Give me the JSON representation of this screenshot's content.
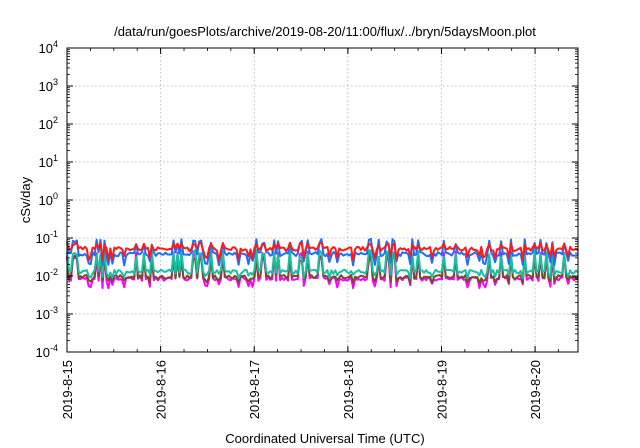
{
  "chart_data": {
    "type": "line",
    "title": "/data/run/goesPlots/archive/2019-08-20/11:00/flux/../bryn/5daysMoon.plot",
    "xlabel": "Coordinated Universal Time (UTC)",
    "ylabel": "cSv/day",
    "yscale": "log",
    "ylim": [
      0.0001,
      10000
    ],
    "xlim": [
      "2019-08-15 00:00",
      "2019-08-20 11:00"
    ],
    "grid": true,
    "legend": "none",
    "x_ticks": [
      "2019-8-15",
      "2019-8-16",
      "2019-8-17",
      "2019-8-18",
      "2019-8-19",
      "2019-8-20"
    ],
    "y_ticks": [
      {
        "value": 0.0001,
        "base": "10",
        "exp": "-4"
      },
      {
        "value": 0.001,
        "base": "10",
        "exp": "-3"
      },
      {
        "value": 0.01,
        "base": "10",
        "exp": "-2"
      },
      {
        "value": 0.1,
        "base": "10",
        "exp": "-1"
      },
      {
        "value": 1,
        "base": "10",
        "exp": "0"
      },
      {
        "value": 10,
        "base": "10",
        "exp": "1"
      },
      {
        "value": 100,
        "base": "10",
        "exp": "2"
      },
      {
        "value": 1000,
        "base": "10",
        "exp": "3"
      },
      {
        "value": 10000,
        "base": "10",
        "exp": "4"
      }
    ],
    "series": [
      {
        "color": "#ff1a1a",
        "baseline": 0.052,
        "spike": 0.075,
        "dip": 0.03
      },
      {
        "color": "#1e6fff",
        "baseline": 0.038,
        "spike": 0.095,
        "dip": 0.022
      },
      {
        "color": "#18c0a0",
        "baseline": 0.013,
        "spike": 0.05,
        "dip": 0.01
      },
      {
        "color": "#7a4a2a",
        "baseline": 0.0095,
        "spike": 0.04,
        "dip": 0.0075
      },
      {
        "color": "#ff00ff",
        "baseline": 0.0085,
        "spike": 0.045,
        "dip": 0.0055
      }
    ]
  }
}
